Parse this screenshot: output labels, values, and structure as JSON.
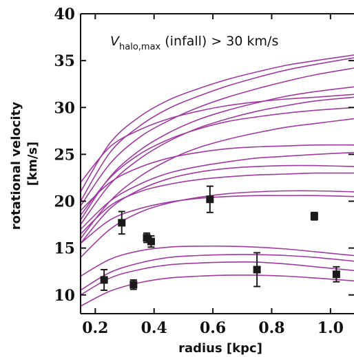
{
  "chart_data": {
    "type": "line",
    "title": "",
    "annotation": {
      "symbol": "V",
      "subscript": "halo,max",
      "text": " (infall) > 30 km/s"
    },
    "xlabel": "radius [kpc]",
    "ylabel_lines": [
      "rotational velocity",
      "[km/s]"
    ],
    "xlim": [
      0.15,
      1.08
    ],
    "ylim": [
      8,
      40
    ],
    "xticks": [
      0.2,
      0.4,
      0.6,
      0.8,
      1.0
    ],
    "xtick_labels": [
      "0.2",
      "0.4",
      "0.6",
      "0.8",
      "1.0"
    ],
    "yticks": [
      10,
      15,
      20,
      25,
      30,
      35,
      40
    ],
    "ytick_labels": [
      "10",
      "15",
      "20",
      "25",
      "30",
      "35",
      "40"
    ],
    "grid": false,
    "line_color": "#a03aa0",
    "marker_color": "#1a1a1a",
    "curves_x": [
      0.15,
      0.25,
      0.35,
      0.45,
      0.55,
      0.65,
      0.75,
      0.85,
      0.95,
      1.08
    ],
    "curves": [
      [
        21.0,
        26.2,
        29.0,
        30.8,
        32.0,
        33.0,
        33.8,
        34.5,
        35.0,
        35.6
      ],
      [
        20.0,
        25.2,
        28.0,
        29.9,
        31.2,
        32.3,
        33.2,
        34.0,
        34.6,
        35.3
      ],
      [
        19.5,
        24.0,
        26.8,
        28.6,
        30.0,
        31.1,
        32.0,
        32.8,
        33.5,
        34.2
      ],
      [
        22.0,
        25.8,
        27.6,
        28.8,
        29.6,
        30.2,
        30.6,
        30.9,
        31.1,
        31.4
      ],
      [
        18.0,
        22.6,
        25.4,
        27.3,
        28.7,
        29.7,
        30.5,
        31.2,
        31.7,
        32.2
      ],
      [
        17.5,
        21.8,
        24.5,
        26.4,
        27.8,
        28.8,
        29.6,
        30.2,
        30.7,
        31.1
      ],
      [
        18.5,
        22.5,
        25.0,
        26.6,
        27.7,
        28.5,
        29.0,
        29.4,
        29.7,
        30.0
      ],
      [
        19.0,
        22.0,
        23.6,
        24.6,
        25.2,
        25.6,
        25.8,
        25.9,
        26.0,
        26.0
      ],
      [
        16.0,
        20.0,
        22.6,
        24.4,
        25.7,
        26.6,
        27.3,
        27.9,
        28.3,
        28.8
      ],
      [
        17.0,
        20.0,
        21.8,
        23.0,
        23.7,
        24.2,
        24.6,
        24.8,
        25.0,
        25.2
      ],
      [
        15.5,
        19.2,
        21.2,
        22.4,
        23.1,
        23.5,
        23.7,
        23.8,
        23.8,
        23.7
      ],
      [
        16.5,
        19.5,
        21.0,
        21.8,
        22.3,
        22.6,
        22.8,
        22.9,
        23.0,
        23.0
      ],
      [
        14.0,
        17.0,
        18.8,
        19.8,
        20.4,
        20.8,
        21.0,
        21.1,
        21.1,
        21.0
      ],
      [
        15.5,
        18.0,
        19.2,
        19.9,
        20.3,
        20.5,
        20.6,
        20.6,
        20.6,
        20.5
      ],
      [
        12.0,
        13.8,
        14.7,
        15.1,
        15.2,
        15.2,
        15.1,
        14.9,
        14.6,
        14.2
      ],
      [
        10.5,
        12.4,
        13.4,
        14.0,
        14.2,
        14.3,
        14.3,
        14.2,
        14.0,
        13.6
      ],
      [
        10.0,
        11.8,
        12.7,
        13.2,
        13.4,
        13.5,
        13.5,
        13.3,
        13.0,
        12.6
      ],
      [
        8.8,
        10.4,
        11.3,
        11.8,
        12.0,
        12.1,
        12.1,
        12.0,
        11.8,
        11.5
      ]
    ],
    "points": [
      {
        "x": 0.23,
        "y": 11.6,
        "err": 1.1
      },
      {
        "x": 0.29,
        "y": 17.7,
        "err": 1.2
      },
      {
        "x": 0.33,
        "y": 11.1,
        "err": 0.5
      },
      {
        "x": 0.375,
        "y": 16.1,
        "err": 0.5
      },
      {
        "x": 0.39,
        "y": 15.7,
        "err": 0.6
      },
      {
        "x": 0.59,
        "y": 20.2,
        "err": 1.4
      },
      {
        "x": 0.75,
        "y": 12.7,
        "err": 1.8
      },
      {
        "x": 0.945,
        "y": 18.4,
        "err": 0.4
      },
      {
        "x": 1.02,
        "y": 12.2,
        "err": 0.8
      }
    ]
  }
}
